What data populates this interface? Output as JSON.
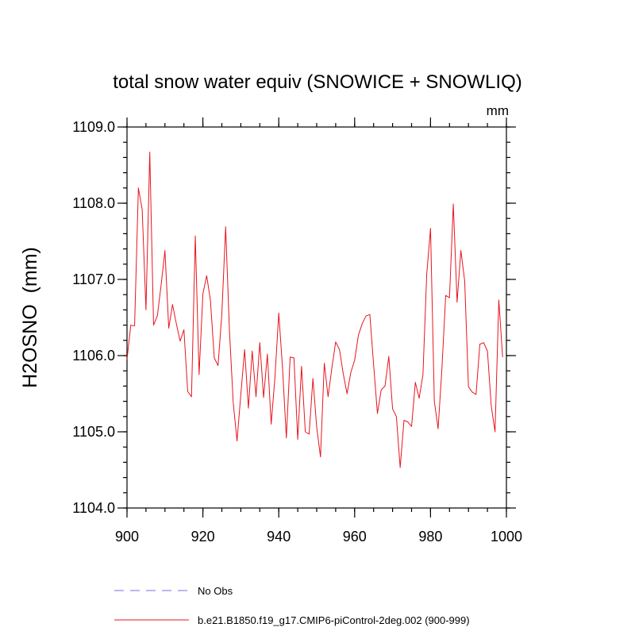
{
  "chart_data": {
    "type": "line",
    "title": "total snow water equiv (SNOWICE + SNOWLIQ)",
    "units_label": "mm",
    "ylabel": "H2OSNO  (mm)",
    "xlabel": "",
    "xlim": [
      900,
      1000
    ],
    "ylim": [
      1104.0,
      1109.0
    ],
    "x_ticks": [
      900,
      920,
      940,
      960,
      980,
      1000
    ],
    "x_tick_labels": [
      "900",
      "920",
      "940",
      "960",
      "980",
      "1000"
    ],
    "y_ticks": [
      1104.0,
      1105.0,
      1106.0,
      1107.0,
      1108.0,
      1109.0
    ],
    "y_tick_labels": [
      "1104.0",
      "1105.0",
      "1106.0",
      "1107.0",
      "1108.0",
      "1109.0"
    ],
    "series": [
      {
        "name": "b.e21.B1850.f19_g17.CMIP6-piControl-2deg.002 (900-999)",
        "color": "#e8141e",
        "x_start": 900,
        "x_step": 1,
        "values": [
          1105.95,
          1106.4,
          1106.39,
          1108.2,
          1107.92,
          1106.6,
          1108.67,
          1106.4,
          1106.52,
          1106.93,
          1107.38,
          1106.36,
          1106.67,
          1106.42,
          1106.19,
          1106.34,
          1105.53,
          1105.46,
          1107.57,
          1105.75,
          1106.81,
          1107.05,
          1106.72,
          1105.97,
          1105.87,
          1106.55,
          1107.69,
          1106.33,
          1105.38,
          1104.88,
          1105.49,
          1106.08,
          1105.31,
          1106.06,
          1105.46,
          1106.17,
          1105.45,
          1106.02,
          1105.1,
          1105.72,
          1106.56,
          1105.83,
          1104.92,
          1105.98,
          1105.97,
          1104.9,
          1105.86,
          1105.0,
          1104.97,
          1105.7,
          1105.06,
          1104.67,
          1105.9,
          1105.46,
          1105.84,
          1106.18,
          1106.08,
          1105.76,
          1105.5,
          1105.78,
          1105.94,
          1106.27,
          1106.42,
          1106.52,
          1106.54,
          1105.88,
          1105.24,
          1105.55,
          1105.6,
          1105.99,
          1105.3,
          1105.2,
          1104.53,
          1105.15,
          1105.13,
          1105.07,
          1105.65,
          1105.44,
          1105.75,
          1107.07,
          1107.67,
          1105.4,
          1105.04,
          1105.83,
          1106.79,
          1106.76,
          1107.99,
          1106.7,
          1107.38,
          1106.98,
          1105.59,
          1105.52,
          1105.49,
          1106.15,
          1106.17,
          1106.06,
          1105.34,
          1105.0,
          1106.73,
          1105.98
        ]
      }
    ],
    "legend": [
      {
        "label": "No Obs",
        "color": "#7070e0",
        "style": "dashed"
      },
      {
        "label": "b.e21.B1850.f19_g17.CMIP6-piControl-2deg.002 (900-999)",
        "color": "#e8141e",
        "style": "solid"
      }
    ],
    "legend_position": "bottom"
  }
}
